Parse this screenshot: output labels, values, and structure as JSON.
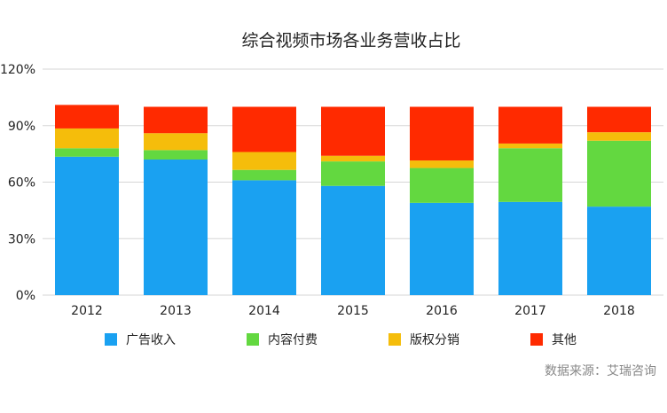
{
  "chart_data": {
    "type": "bar",
    "stacked": true,
    "title": "综合视频市场各业务营收占比",
    "xlabel": "",
    "ylabel": "",
    "ylim": [
      0,
      120
    ],
    "y_ticks": [
      "0%",
      "30%",
      "60%",
      "90%",
      "120%"
    ],
    "grid": true,
    "legend_position": "bottom",
    "categories": [
      "2012",
      "2013",
      "2014",
      "2015",
      "2016",
      "2017",
      "2018"
    ],
    "series": [
      {
        "name": "广告收入",
        "color": "#1aa1f1",
        "values": [
          73.5,
          72,
          61,
          58,
          49,
          49.5,
          47
        ]
      },
      {
        "name": "内容付费",
        "color": "#63d840",
        "values": [
          4.5,
          5,
          5.5,
          13,
          18.5,
          28.5,
          35
        ]
      },
      {
        "name": "版权分销",
        "color": "#f5bd0b",
        "values": [
          10.5,
          9,
          9.5,
          3,
          4,
          2.5,
          4.5
        ]
      },
      {
        "name": "其他",
        "color": "#ff2a00",
        "values": [
          12.5,
          14,
          24,
          26,
          28.5,
          19.5,
          13.5
        ]
      }
    ]
  },
  "source_note": "数据来源：艾瑞咨询"
}
